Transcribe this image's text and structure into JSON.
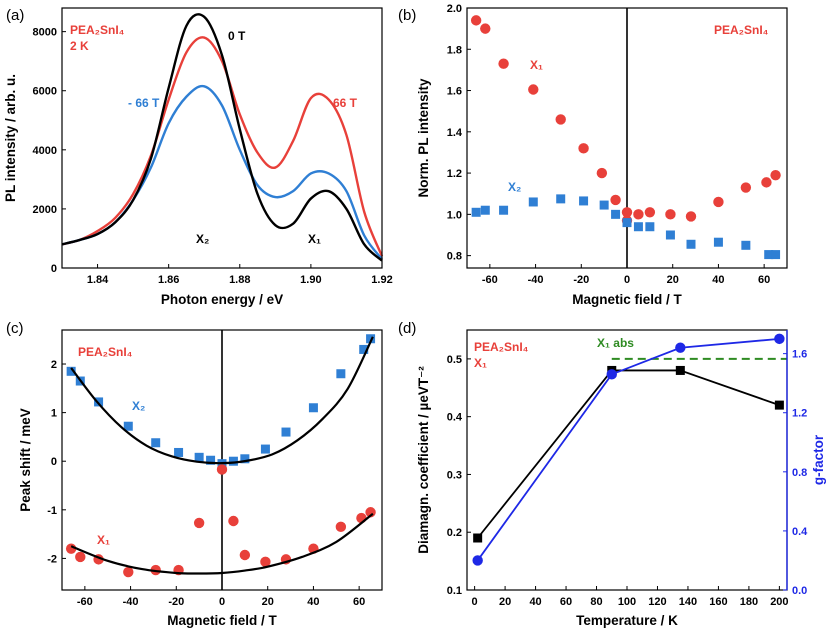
{
  "colors": {
    "black": "#000000",
    "red": "#e8403a",
    "blue": "#2f7fd4",
    "green": "#2e8b22",
    "gblue": "#1e28e6"
  },
  "chart_data": [
    {
      "id": "a",
      "type": "line",
      "panel_label": "(a)",
      "xlabel": "Photon energy / eV",
      "ylabel": "PL intensity / arb. u.",
      "xlim": [
        1.83,
        1.92
      ],
      "ylim": [
        0,
        8800
      ],
      "xticks": [
        1.84,
        1.86,
        1.88,
        1.9,
        1.92
      ],
      "xtick_labels": [
        "1.84",
        "1.86",
        "1.88",
        "1.90",
        "1.92"
      ],
      "yticks": [
        0,
        2000,
        4000,
        6000,
        8000
      ],
      "ytick_labels": [
        "0",
        "2000",
        "4000",
        "6000",
        "8000"
      ],
      "x": [
        1.83,
        1.835,
        1.84,
        1.845,
        1.85,
        1.855,
        1.86,
        1.865,
        1.87,
        1.875,
        1.88,
        1.885,
        1.89,
        1.895,
        1.9,
        1.905,
        1.91,
        1.915,
        1.92
      ],
      "series": [
        {
          "name": "0 T",
          "color": "#000000",
          "values": [
            800,
            950,
            1150,
            1550,
            2300,
            3700,
            6100,
            8200,
            8500,
            7200,
            4700,
            2500,
            1450,
            1500,
            2350,
            2600,
            2000,
            800,
            250
          ]
        },
        {
          "name": "66 T",
          "color": "#e8403a",
          "values": [
            800,
            950,
            1250,
            1700,
            2500,
            3800,
            5700,
            7300,
            7800,
            7000,
            5200,
            3900,
            3400,
            4300,
            5750,
            5700,
            4500,
            1900,
            400
          ]
        },
        {
          "name": "- 66 T",
          "color": "#2f7fd4",
          "values": [
            800,
            950,
            1150,
            1550,
            2300,
            3400,
            4900,
            5800,
            6150,
            5500,
            4000,
            2800,
            2400,
            2600,
            3200,
            3200,
            2600,
            1100,
            300
          ]
        }
      ],
      "annotations": {
        "material": "PEA₂SnI₄",
        "temperature": "2 K",
        "x1": "X₁",
        "x2": "X₂"
      }
    },
    {
      "id": "b",
      "type": "scatter",
      "panel_label": "(b)",
      "xlabel": "Magnetic field / T",
      "ylabel": "Norm. PL intensity",
      "xlim": [
        -70,
        70
      ],
      "ylim": [
        0.74,
        2.0
      ],
      "xticks": [
        -60,
        -40,
        -20,
        0,
        20,
        40,
        60
      ],
      "xtick_labels": [
        "-60",
        "-40",
        "-20",
        "0",
        "20",
        "40",
        "60"
      ],
      "yticks": [
        0.8,
        1.0,
        1.2,
        1.4,
        1.6,
        1.8,
        2.0
      ],
      "ytick_labels": [
        "0.8",
        "1.0",
        "1.2",
        "1.4",
        "1.6",
        "1.8",
        "2.0"
      ],
      "series": [
        {
          "name": "X₁",
          "color": "#e8403a",
          "marker": "circle",
          "x": [
            -66,
            -62,
            -54,
            -41,
            -29,
            -19,
            -11,
            -5,
            0,
            0,
            5,
            10,
            19,
            28,
            40,
            52,
            61,
            65
          ],
          "y": [
            1.94,
            1.9,
            1.73,
            1.605,
            1.46,
            1.32,
            1.2,
            1.07,
            1.01,
            0.97,
            1.0,
            1.01,
            1.0,
            0.99,
            1.06,
            1.13,
            1.155,
            1.19
          ]
        },
        {
          "name": "X₂",
          "color": "#2f7fd4",
          "marker": "square",
          "x": [
            -66,
            -62,
            -54,
            -41,
            -29,
            -19,
            -10,
            -5,
            0,
            5,
            10,
            19,
            28,
            40,
            52,
            62,
            65
          ],
          "y": [
            1.01,
            1.02,
            1.02,
            1.06,
            1.075,
            1.065,
            1.045,
            1.0,
            0.96,
            0.94,
            0.94,
            0.9,
            0.855,
            0.865,
            0.85,
            0.805,
            0.805
          ]
        }
      ],
      "annotations": {
        "material": "PEA₂SnI₄",
        "x1": "X₁",
        "x2": "X₂"
      }
    },
    {
      "id": "c",
      "type": "scatter",
      "panel_label": "(c)",
      "xlabel": "Magnetic field / T",
      "ylabel": "Peak shift / meV",
      "xlim": [
        -70,
        70
      ],
      "ylim": [
        -2.65,
        2.7
      ],
      "xticks": [
        -60,
        -40,
        -20,
        0,
        20,
        40,
        60
      ],
      "xtick_labels": [
        "-60",
        "-40",
        "-20",
        "0",
        "20",
        "40",
        "60"
      ],
      "yticks": [
        -2,
        -1,
        0,
        1,
        2
      ],
      "ytick_labels": [
        "-2",
        "-1",
        "0",
        "1",
        "2"
      ],
      "series": [
        {
          "name": "X₂",
          "color": "#2f7fd4",
          "marker": "square",
          "x": [
            -66,
            -62,
            -54,
            -41,
            -29,
            -19,
            -10,
            -5,
            0,
            5,
            10,
            19,
            28,
            40,
            52,
            62,
            65
          ],
          "y": [
            1.85,
            1.65,
            1.22,
            0.72,
            0.38,
            0.18,
            0.08,
            0.02,
            -0.05,
            0.0,
            0.05,
            0.25,
            0.6,
            1.1,
            1.8,
            2.3,
            2.52
          ]
        },
        {
          "name": "X₁",
          "color": "#e8403a",
          "marker": "circle",
          "x": [
            -66,
            -62,
            -54,
            -41,
            -29,
            -19,
            -10,
            0,
            5,
            10,
            19,
            28,
            40,
            52,
            61,
            65
          ],
          "y": [
            -1.8,
            -1.97,
            -2.02,
            -2.28,
            -2.24,
            -2.24,
            -1.27,
            -0.17,
            -1.23,
            -1.93,
            -2.07,
            -2.02,
            -1.8,
            -1.35,
            -1.17,
            -1.05
          ]
        }
      ],
      "fits": [
        {
          "name": "X₂ fit",
          "color": "#000000",
          "x": [
            -66,
            -55,
            -44,
            -33,
            -22,
            -11,
            0,
            11,
            22,
            33,
            44,
            55,
            66
          ],
          "y": [
            1.92,
            1.24,
            0.7,
            0.32,
            0.1,
            -0.01,
            -0.04,
            0.01,
            0.14,
            0.43,
            0.87,
            1.49,
            2.56
          ]
        },
        {
          "name": "X₁ fit",
          "color": "#000000",
          "x": [
            -66,
            -50,
            -35,
            -20,
            -10,
            0,
            10,
            20,
            35,
            50,
            66
          ],
          "y": [
            -1.75,
            -2.05,
            -2.22,
            -2.3,
            -2.31,
            -2.3,
            -2.25,
            -2.17,
            -1.97,
            -1.66,
            -1.08
          ]
        }
      ],
      "annotations": {
        "material": "PEA₂SnI₄",
        "x1": "X₁",
        "x2": "X₂"
      }
    },
    {
      "id": "d",
      "type": "line",
      "panel_label": "(d)",
      "xlabel": "Temperature / K",
      "ylabel": "Diamagn. coefficient / µeVT⁻²",
      "y2label": "g-factor",
      "xlim": [
        -5,
        205
      ],
      "ylim": [
        0.1,
        0.55
      ],
      "y2lim": [
        0,
        1.76
      ],
      "xticks": [
        0,
        20,
        40,
        60,
        80,
        100,
        120,
        140,
        160,
        180,
        200
      ],
      "xtick_labels": [
        "0",
        "20",
        "40",
        "60",
        "80",
        "100",
        "120",
        "140",
        "160",
        "180",
        "200"
      ],
      "yticks": [
        0.1,
        0.2,
        0.3,
        0.4,
        0.5
      ],
      "ytick_labels": [
        "0.1",
        "0.2",
        "0.3",
        "0.4",
        "0.5"
      ],
      "y2ticks": [
        0,
        0.4,
        0.8,
        1.2,
        1.6
      ],
      "y2tick_labels": [
        "0.0",
        "0.4",
        "0.8",
        "1.2",
        "1.6"
      ],
      "series": [
        {
          "name": "Diamagnetic coefficient",
          "axis": "left",
          "color": "#000000",
          "marker": "square",
          "x": [
            2,
            90,
            135,
            200
          ],
          "y": [
            0.19,
            0.48,
            0.48,
            0.42
          ]
        },
        {
          "name": "g-factor",
          "axis": "right",
          "color": "#1e28e6",
          "marker": "circle",
          "x": [
            2,
            90,
            135,
            200
          ],
          "y": [
            0.2,
            1.46,
            1.64,
            1.7
          ]
        }
      ],
      "reference_line": {
        "label": "X₁ abs",
        "color": "#2e8b22",
        "y": 0.5,
        "x_range": [
          90,
          205
        ]
      },
      "annotations": {
        "material": "PEA₂SnI₄",
        "x1": "X₁"
      }
    }
  ]
}
